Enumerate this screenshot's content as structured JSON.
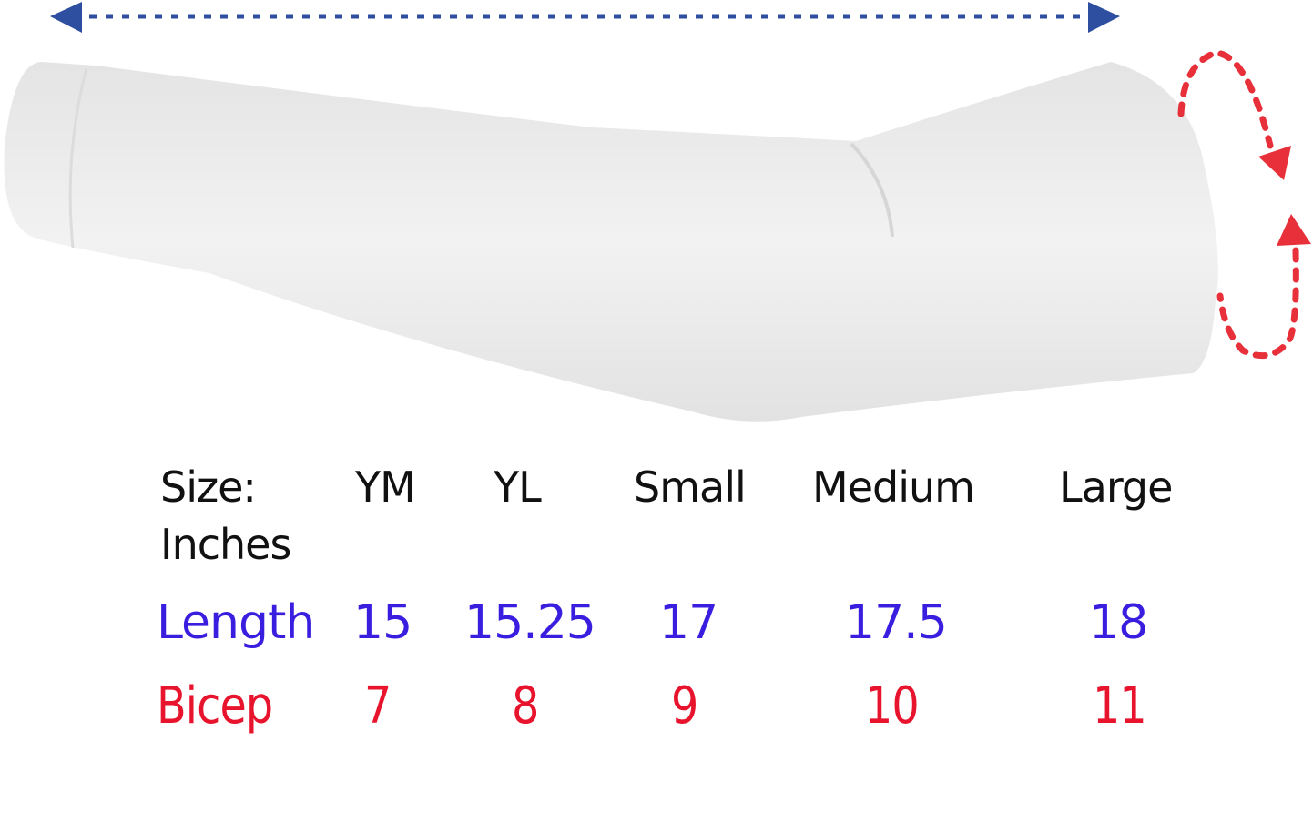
{
  "size_chart": {
    "header_label": "Size:",
    "unit_label": "Inches",
    "sizes": [
      "YM",
      "YL",
      "Small",
      "Medium",
      "Large"
    ],
    "rows": [
      {
        "label": "Length",
        "values": [
          "15",
          "15.25",
          "17",
          "17.5",
          "18"
        ],
        "color": "#3a1ee0"
      },
      {
        "label": "Bicep",
        "values": [
          "7",
          "8",
          "9",
          "10",
          "11"
        ],
        "color": "#e8132c"
      }
    ]
  },
  "colors": {
    "length_arrow": "#2e4fa0",
    "bicep_arrow": "#e8303a",
    "sleeve": "#ececec"
  },
  "icons": [
    "length-double-arrow-icon",
    "circumference-arrow-icon"
  ]
}
